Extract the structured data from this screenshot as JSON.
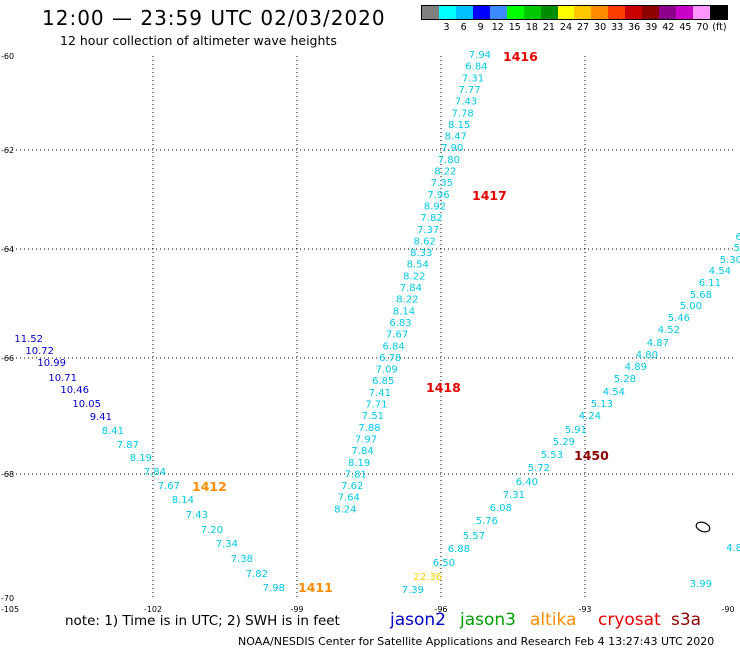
{
  "header": {
    "title": "12:00 — 23:59 UTC 02/03/2020",
    "subtitle": "12 hour collection of altimeter wave heights"
  },
  "color_scale": {
    "colors": [
      "#808080",
      "#00ffff",
      "#00c0ff",
      "#0000ff",
      "#3c8cff",
      "#00ff00",
      "#00c800",
      "#008c00",
      "#ffff00",
      "#ffc800",
      "#ff8c00",
      "#ff3c00",
      "#c80000",
      "#8c0000",
      "#8c008c",
      "#c800c8",
      "#ff96ff",
      "#000000"
    ],
    "labels": [
      "3",
      "6",
      "9",
      "12",
      "15",
      "18",
      "21",
      "24",
      "27",
      "30",
      "33",
      "36",
      "39",
      "42",
      "45",
      "70",
      "(ft)"
    ]
  },
  "map": {
    "lat_labels": [
      "-60",
      "-62",
      "-64",
      "-66",
      "-68",
      "-70"
    ],
    "lon_labels": [
      "-105",
      "-102",
      "-99",
      "-96",
      "-93",
      "-90"
    ],
    "track_color_cyan": "#00c8e6",
    "track_color_blue": "#0000c8",
    "track_color_yellow": "#ffd200",
    "tracks": [
      {
        "id": "t1416",
        "labels": [
          "7.94",
          "6.84",
          "7.31",
          "7.77",
          "7.43",
          "7.78",
          "8.15",
          "8.47",
          "7.90",
          "7.80",
          "8.22",
          "7.35",
          "7.96",
          "8.92",
          "7.82",
          "7.37",
          "8.62",
          "8.33",
          "8.54",
          "8.22",
          "7.84",
          "8.22",
          "8.14",
          "6.83",
          "7.67",
          "6.84",
          "6.78",
          "7.09",
          "6.85",
          "7.41",
          "7.71",
          "7.51",
          "7.88",
          "7.97",
          "7.84",
          "8.19",
          "7.81",
          "7.62",
          "7.64",
          "8.24"
        ]
      },
      {
        "id": "t1412",
        "labels": [
          "11.52",
          "10.72",
          "10.99",
          "10.71",
          "10.46",
          "10.05",
          "9.41",
          "8.41",
          "7.87",
          "8.19",
          "7.84",
          "7.67",
          "8.14",
          "7.43",
          "7.20",
          "7.34",
          "7.38",
          "7.82",
          "7.98"
        ]
      },
      {
        "id": "t1450",
        "labels": [
          "6.",
          "5.",
          "5.30",
          "4.54",
          "6.11",
          "5.68",
          "5.00",
          "5.46",
          "4.52",
          "4.87",
          "4.80",
          "4.89",
          "5.28",
          "4.54",
          "5.13",
          "4.24",
          "5.91",
          "5.29",
          "5.53",
          "5.72",
          "6.40",
          "7.31",
          "6.08",
          "5.76",
          "5.57",
          "6.88",
          "6.50",
          "22.36",
          "7.39"
        ]
      },
      {
        "id": "misc",
        "labels": [
          "4.8",
          "3.99"
        ]
      }
    ],
    "pass_labels": [
      {
        "text": "1416",
        "color": "#e60000"
      },
      {
        "text": "1417",
        "color": "#e60000"
      },
      {
        "text": "1418",
        "color": "#e60000"
      },
      {
        "text": "1412",
        "color": "#ff8c00"
      },
      {
        "text": "1411",
        "color": "#ff8c00"
      },
      {
        "text": "1450",
        "color": "#8c0000"
      }
    ]
  },
  "footer": {
    "note": "note: 1) Time is in UTC; 2) SWH is in feet",
    "legend": [
      {
        "name": "jason2",
        "color": "#0000c8"
      },
      {
        "name": "jason3",
        "color": "#00a000"
      },
      {
        "name": "altika",
        "color": "#ff8c00"
      },
      {
        "name": "cryosat",
        "color": "#e60000"
      },
      {
        "name": "s3a",
        "color": "#8c0000"
      }
    ],
    "credit": "NOAA/NESDIS Center for Satellite Applications and Research   Feb  4 13:27:43 UTC 2020"
  }
}
